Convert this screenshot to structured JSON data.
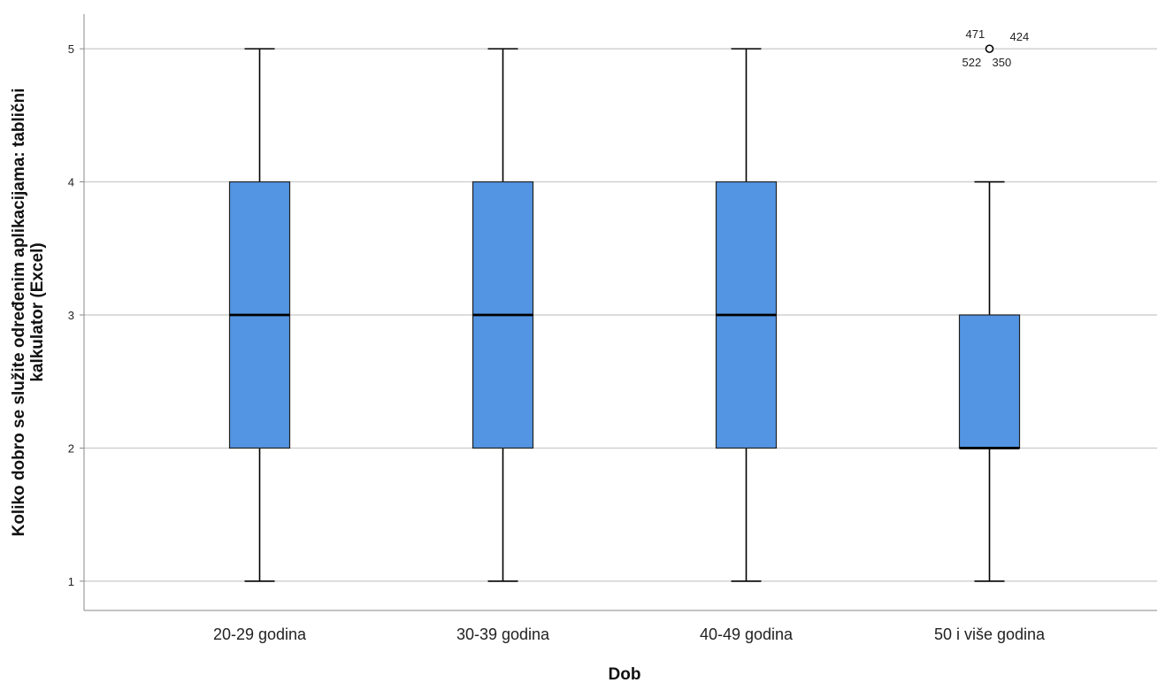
{
  "chart_data": {
    "type": "boxplot",
    "xlabel": "Dob",
    "ylabel_lines": [
      "Koliko dobro se služite određenim aplikacijama: tablični",
      "kalkulator (Excel)"
    ],
    "y_ticks": [
      1,
      2,
      3,
      4,
      5
    ],
    "ylim": [
      0.78,
      5.26
    ],
    "grid": true,
    "box_color": "#5495e3",
    "categories": [
      "20-29 godina",
      "30-39 godina",
      "40-49 godina",
      "50 i više godina"
    ],
    "boxes": [
      {
        "category": "20-29 godina",
        "min": 1,
        "q1": 2,
        "median": 3,
        "q3": 4,
        "max": 5,
        "outliers": []
      },
      {
        "category": "30-39 godina",
        "min": 1,
        "q1": 2,
        "median": 3,
        "q3": 4,
        "max": 5,
        "outliers": []
      },
      {
        "category": "40-49 godina",
        "min": 1,
        "q1": 2,
        "median": 3,
        "q3": 4,
        "max": 5,
        "outliers": []
      },
      {
        "category": "50 i više godina",
        "min": 1,
        "q1": 2,
        "median": 2,
        "q3": 3,
        "max": 4,
        "outliers": [
          {
            "value": 5,
            "labels": [
              "471",
              "424",
              "522",
              "350"
            ]
          }
        ]
      }
    ]
  }
}
